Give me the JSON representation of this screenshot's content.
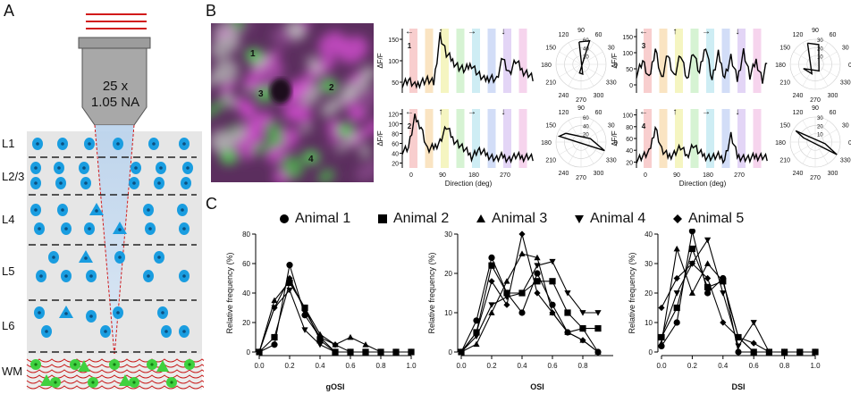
{
  "panels": {
    "a": "A",
    "b": "B",
    "c": "C"
  },
  "panelA": {
    "objective_line1": "25 x",
    "objective_line2": "1.05 NA",
    "layers": [
      "L1",
      "L2/3",
      "L4",
      "L5",
      "L6",
      "WM"
    ]
  },
  "panelB": {
    "roi_labels": [
      "1",
      "2",
      "3",
      "4"
    ],
    "trace_ylabel": "ΔF/F",
    "trace_xlabel": "Direction (deg)",
    "trace_xticks": [
      "0",
      "90",
      "180",
      "270"
    ],
    "traces": [
      {
        "id": "1",
        "yticks": [
          "50",
          "100",
          "150"
        ]
      },
      {
        "id": "2",
        "yticks": [
          "20",
          "40",
          "60",
          "80",
          "100",
          "120"
        ]
      },
      {
        "id": "3",
        "yticks": [
          "0",
          "50",
          "100",
          "150"
        ]
      },
      {
        "id": "4",
        "yticks": [
          "20",
          "40",
          "60",
          "80",
          "100"
        ]
      }
    ],
    "arrows": [
      "←",
      "↑",
      "→",
      "↓"
    ],
    "polar_angles": [
      "90",
      "120",
      "150",
      "180",
      "210",
      "240",
      "270",
      "300",
      "330",
      "0",
      "30",
      "60"
    ],
    "polar_rings": [
      [
        "20",
        "40",
        "60"
      ],
      [
        "20",
        "40",
        "60"
      ],
      [
        "10",
        "20",
        "30"
      ],
      [
        "10",
        "20",
        "30"
      ]
    ]
  },
  "legend": [
    "Animal 1",
    "Animal 2",
    "Animal 3",
    "Animal 4",
    "Animal 5"
  ],
  "colors": {
    "trace": "#000000",
    "red": "#d11a1a",
    "cyan": "#1a9de0",
    "green": "#3fd13f",
    "magenta": "#c03ac0"
  },
  "chart_data": [
    {
      "type": "line",
      "xlabel": "gOSI",
      "ylabel": "Relative frequency (%)",
      "xlim": [
        0,
        1
      ],
      "ylim": [
        0,
        80
      ],
      "xticks": [
        "0.0",
        "0.2",
        "0.4",
        "0.6",
        "0.8",
        "1.0"
      ],
      "yticks": [
        "0",
        "20",
        "40",
        "60",
        "80"
      ],
      "x": [
        0.0,
        0.1,
        0.2,
        0.3,
        0.4,
        0.5,
        0.6,
        0.7,
        0.8,
        0.9,
        1.0
      ],
      "series": [
        {
          "name": "Animal 1",
          "values": [
            0,
            5,
            59,
            25,
            10,
            0,
            0,
            0,
            0,
            0,
            0
          ]
        },
        {
          "name": "Animal 2",
          "values": [
            0,
            10,
            47,
            30,
            8,
            0,
            0,
            0,
            0,
            0,
            0
          ]
        },
        {
          "name": "Animal 3",
          "values": [
            0,
            35,
            48,
            30,
            12,
            5,
            10,
            5,
            0,
            0,
            0
          ]
        },
        {
          "name": "Animal 4",
          "values": [
            0,
            30,
            42,
            15,
            5,
            0,
            0,
            0,
            0,
            0,
            0
          ]
        },
        {
          "name": "Animal 5",
          "values": [
            0,
            30,
            50,
            28,
            10,
            5,
            0,
            0,
            0,
            0,
            0
          ]
        }
      ]
    },
    {
      "type": "line",
      "xlabel": "OSI",
      "ylabel": "Relative frequency (%)",
      "xlim": [
        0,
        1
      ],
      "ylim": [
        0,
        30
      ],
      "xticks": [
        "0.0",
        "0.2",
        "0.4",
        "0.6",
        "0.8"
      ],
      "yticks": [
        "0",
        "10",
        "20",
        "30"
      ],
      "x": [
        0.0,
        0.1,
        0.2,
        0.3,
        0.4,
        0.5,
        0.6,
        0.7,
        0.8,
        0.9
      ],
      "series": [
        {
          "name": "Animal 1",
          "values": [
            0,
            8,
            24,
            15,
            10,
            20,
            12,
            5,
            6,
            0
          ]
        },
        {
          "name": "Animal 2",
          "values": [
            0,
            5,
            22,
            15,
            15,
            18,
            18,
            10,
            6,
            6
          ]
        },
        {
          "name": "Animal 3",
          "values": [
            0,
            2,
            10,
            18,
            25,
            24,
            10,
            5,
            3,
            0
          ]
        },
        {
          "name": "Animal 4",
          "values": [
            0,
            4,
            12,
            14,
            15,
            22,
            23,
            15,
            10,
            10
          ]
        },
        {
          "name": "Animal 5",
          "values": [
            0,
            5,
            18,
            12,
            30,
            15,
            10,
            5,
            3,
            0
          ]
        }
      ]
    },
    {
      "type": "line",
      "xlabel": "DSI",
      "ylabel": "Relative frequency (%)",
      "xlim": [
        0,
        1
      ],
      "ylim": [
        0,
        40
      ],
      "xticks": [
        "0.0",
        "0.2",
        "0.4",
        "0.6",
        "0.8",
        "1.0"
      ],
      "yticks": [
        "0",
        "10",
        "20",
        "30",
        "40"
      ],
      "x": [
        0.0,
        0.1,
        0.2,
        0.3,
        0.4,
        0.5,
        0.6,
        0.7,
        0.8,
        0.9,
        1.0
      ],
      "series": [
        {
          "name": "Animal 1",
          "values": [
            2,
            10,
            41,
            20,
            25,
            0,
            0,
            0,
            0,
            0,
            0
          ]
        },
        {
          "name": "Animal 2",
          "values": [
            5,
            15,
            35,
            22,
            24,
            5,
            0,
            0,
            0,
            0,
            0
          ]
        },
        {
          "name": "Animal 3",
          "values": [
            3,
            35,
            20,
            30,
            24,
            5,
            0,
            0,
            0,
            0,
            0
          ]
        },
        {
          "name": "Animal 4",
          "values": [
            5,
            20,
            30,
            38,
            20,
            2,
            10,
            0,
            0,
            0,
            0
          ]
        },
        {
          "name": "Animal 5",
          "values": [
            15,
            25,
            30,
            25,
            10,
            5,
            3,
            0,
            0,
            0,
            0
          ]
        }
      ]
    }
  ]
}
